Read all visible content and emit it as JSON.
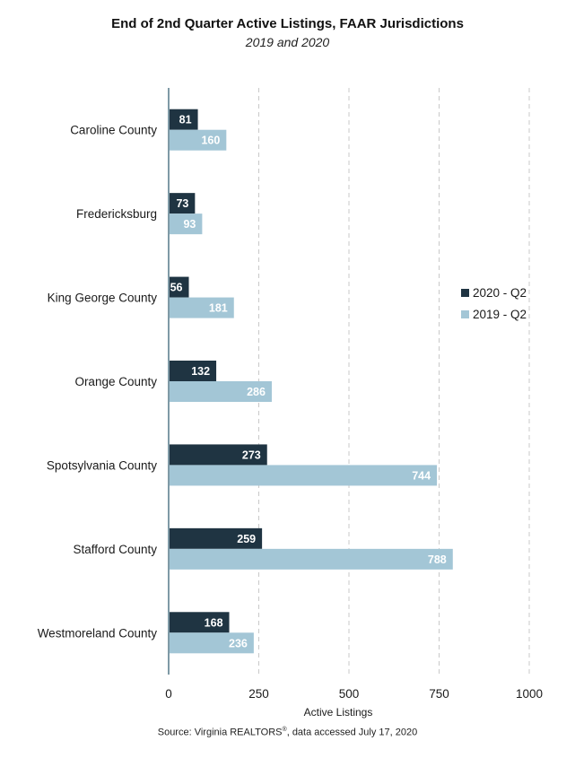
{
  "chart_data": {
    "type": "bar",
    "orientation": "horizontal",
    "title": "End of 2nd Quarter Active Listings, FAAR Jurisdictions",
    "subtitle": "2019 and 2020",
    "xlabel": "Active Listings",
    "ylabel": "",
    "xlim": [
      0,
      1000
    ],
    "xticks": [
      "0",
      "250",
      "500",
      "750",
      "1000"
    ],
    "grid": "vertical dashed",
    "legend_position": "right",
    "categories": [
      "Caroline County",
      "Fredericksburg",
      "King George County",
      "Orange County",
      "Spotsylvania County",
      "Stafford County",
      "Westmoreland County"
    ],
    "series": [
      {
        "name": "2020 - Q2",
        "color": "#1f3442",
        "values": [
          81,
          73,
          56,
          132,
          273,
          259,
          168
        ]
      },
      {
        "name": "2019 - Q2",
        "color": "#a3c6d6",
        "values": [
          160,
          93,
          181,
          286,
          744,
          788,
          236
        ]
      }
    ]
  },
  "source": {
    "prefix": "Source: Virginia REALTORS",
    "sup": "®",
    "suffix": ", data accessed July 17, 2020"
  }
}
